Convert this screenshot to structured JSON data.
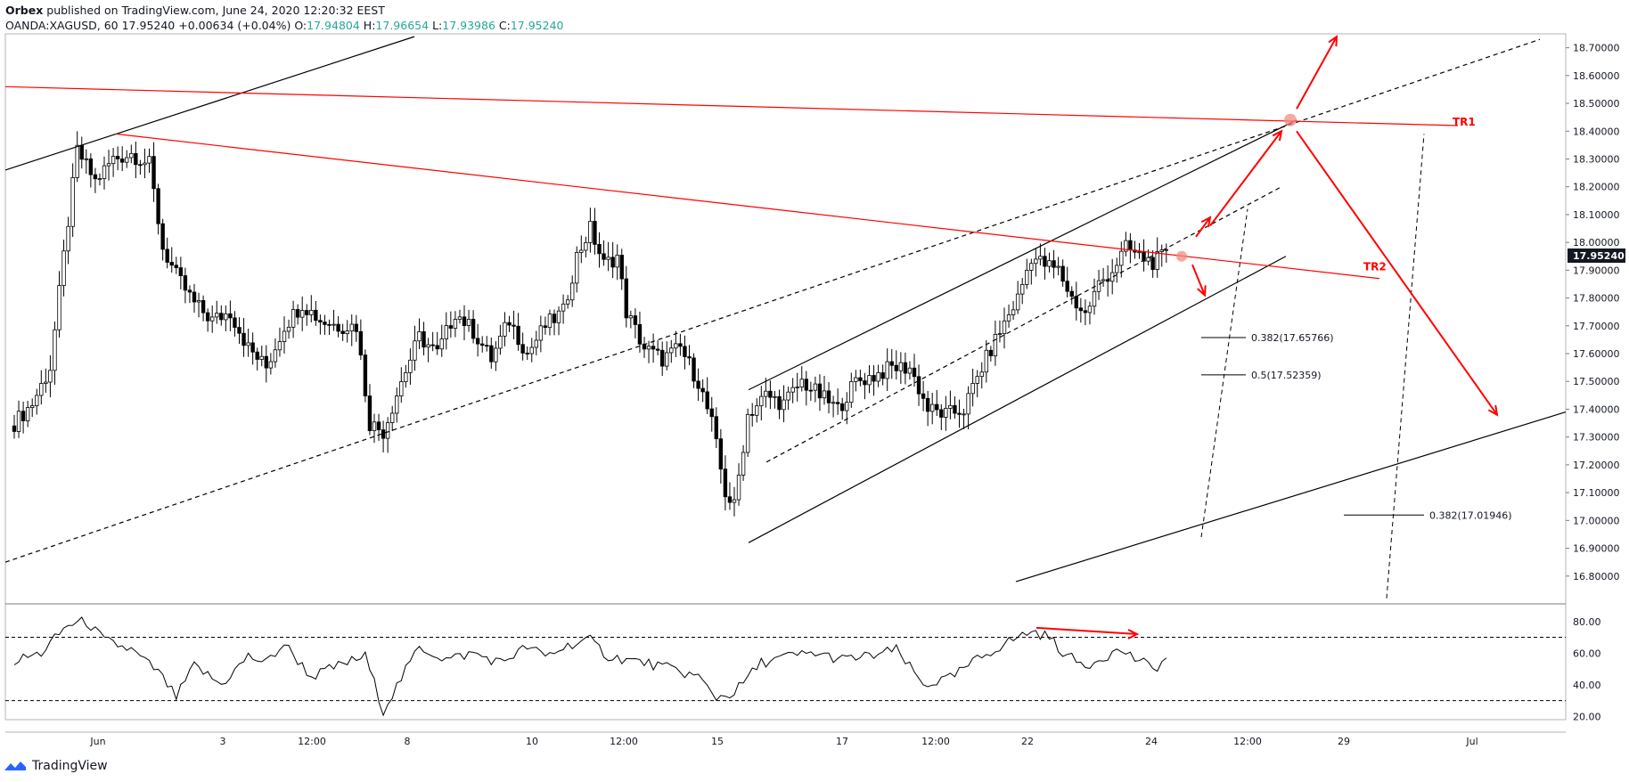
{
  "header": {
    "publisher": "Orbex",
    "published_text": " published on TradingView.com, June 24, 2020 12:20:32 EEST",
    "symbol": "OANDA:XAGUSD, 60",
    "last": "17.95240",
    "change": "+0.00634 (+0.04%)",
    "o_label": "O:",
    "o": "17.94804",
    "h_label": "H:",
    "h": "17.96654",
    "l_label": "L:",
    "l": "17.93986",
    "c_label": "C:",
    "c": "17.95240"
  },
  "footer": {
    "brand": "TradingView",
    "logo_icon": "tradingview-logo-icon"
  },
  "chart_data": {
    "type": "candlestick",
    "symbol": "OANDA:XAGUSD",
    "interval": "60",
    "last_price": 17.9524,
    "ylim": [
      16.7,
      18.75
    ],
    "y_ticks": [
      "18.70000",
      "18.60000",
      "18.50000",
      "18.40000",
      "18.30000",
      "18.20000",
      "18.10000",
      "18.00000",
      "17.90000",
      "17.80000",
      "17.70000",
      "17.60000",
      "17.50000",
      "17.40000",
      "17.30000",
      "17.20000",
      "17.10000",
      "17.00000",
      "16.90000",
      "16.80000"
    ],
    "x_ticks": [
      "Jun",
      "3",
      "12:00",
      "8",
      "10",
      "12:00",
      "15",
      "17",
      "12:00",
      "22",
      "24",
      "12:00",
      "29",
      "Jul"
    ],
    "price_anchors": [
      [
        0,
        17.35
      ],
      [
        4,
        17.42
      ],
      [
        8,
        17.55
      ],
      [
        11,
        17.95
      ],
      [
        14,
        18.33
      ],
      [
        18,
        18.22
      ],
      [
        22,
        18.3
      ],
      [
        26,
        18.32
      ],
      [
        30,
        18.28
      ],
      [
        33,
        17.98
      ],
      [
        36,
        17.88
      ],
      [
        40,
        17.78
      ],
      [
        44,
        17.72
      ],
      [
        48,
        17.75
      ],
      [
        52,
        17.62
      ],
      [
        56,
        17.55
      ],
      [
        60,
        17.7
      ],
      [
        64,
        17.78
      ],
      [
        68,
        17.72
      ],
      [
        72,
        17.7
      ],
      [
        76,
        17.7
      ],
      [
        79,
        17.35
      ],
      [
        82,
        17.32
      ],
      [
        86,
        17.5
      ],
      [
        90,
        17.66
      ],
      [
        94,
        17.6
      ],
      [
        98,
        17.75
      ],
      [
        102,
        17.68
      ],
      [
        106,
        17.58
      ],
      [
        110,
        17.72
      ],
      [
        114,
        17.6
      ],
      [
        118,
        17.7
      ],
      [
        122,
        17.75
      ],
      [
        125,
        17.95
      ],
      [
        128,
        18.05
      ],
      [
        131,
        17.92
      ],
      [
        134,
        17.95
      ],
      [
        136,
        17.75
      ],
      [
        140,
        17.62
      ],
      [
        144,
        17.58
      ],
      [
        148,
        17.62
      ],
      [
        152,
        17.5
      ],
      [
        155,
        17.35
      ],
      [
        158,
        17.1
      ],
      [
        160,
        17.05
      ],
      [
        163,
        17.38
      ],
      [
        167,
        17.45
      ],
      [
        171,
        17.42
      ],
      [
        175,
        17.5
      ],
      [
        179,
        17.45
      ],
      [
        183,
        17.4
      ],
      [
        187,
        17.5
      ],
      [
        191,
        17.52
      ],
      [
        195,
        17.55
      ],
      [
        199,
        17.55
      ],
      [
        203,
        17.4
      ],
      [
        207,
        17.38
      ],
      [
        211,
        17.4
      ],
      [
        215,
        17.55
      ],
      [
        219,
        17.68
      ],
      [
        223,
        17.8
      ],
      [
        226,
        17.95
      ],
      [
        229,
        17.92
      ],
      [
        232,
        17.9
      ],
      [
        235,
        17.8
      ],
      [
        238,
        17.74
      ],
      [
        241,
        17.85
      ],
      [
        244,
        17.9
      ],
      [
        247,
        17.98
      ],
      [
        250,
        17.95
      ],
      [
        253,
        17.93
      ],
      [
        256,
        17.9524
      ]
    ],
    "rsi": {
      "name": "RSI",
      "y_ticks": [
        "80.00",
        "60.00",
        "40.00",
        "20.00"
      ],
      "ylim": [
        18,
        90
      ],
      "levels": [
        70,
        30
      ],
      "anchors": [
        [
          0,
          55
        ],
        [
          6,
          60
        ],
        [
          12,
          78
        ],
        [
          16,
          80
        ],
        [
          20,
          68
        ],
        [
          26,
          62
        ],
        [
          32,
          48
        ],
        [
          36,
          32
        ],
        [
          40,
          52
        ],
        [
          46,
          40
        ],
        [
          52,
          58
        ],
        [
          56,
          54
        ],
        [
          60,
          66
        ],
        [
          66,
          45
        ],
        [
          72,
          52
        ],
        [
          78,
          58
        ],
        [
          82,
          24
        ],
        [
          86,
          44
        ],
        [
          90,
          64
        ],
        [
          96,
          56
        ],
        [
          102,
          60
        ],
        [
          108,
          54
        ],
        [
          114,
          64
        ],
        [
          118,
          58
        ],
        [
          124,
          66
        ],
        [
          128,
          68
        ],
        [
          132,
          58
        ],
        [
          136,
          56
        ],
        [
          140,
          54
        ],
        [
          146,
          50
        ],
        [
          152,
          45
        ],
        [
          156,
          32
        ],
        [
          160,
          35
        ],
        [
          166,
          54
        ],
        [
          172,
          58
        ],
        [
          178,
          60
        ],
        [
          184,
          56
        ],
        [
          190,
          58
        ],
        [
          196,
          62
        ],
        [
          202,
          40
        ],
        [
          208,
          44
        ],
        [
          214,
          56
        ],
        [
          220,
          66
        ],
        [
          226,
          74
        ],
        [
          230,
          70
        ],
        [
          234,
          58
        ],
        [
          238,
          52
        ],
        [
          242,
          58
        ],
        [
          246,
          62
        ],
        [
          250,
          55
        ],
        [
          253,
          50
        ],
        [
          256,
          56
        ]
      ]
    },
    "annotations": [
      {
        "label": "TR1"
      },
      {
        "label": "TR2"
      },
      {
        "label": "0.382(17.65766)",
        "price": 17.65766
      },
      {
        "label": "0.5(17.52359)",
        "price": 17.52359
      },
      {
        "label": "0.382(17.01946)",
        "price": 17.01946
      }
    ],
    "colors": {
      "bull": "#ffffff",
      "bear": "#000000",
      "markup": "#ff0000",
      "price_tag": "#131722",
      "green_text": "#26a69a"
    }
  }
}
